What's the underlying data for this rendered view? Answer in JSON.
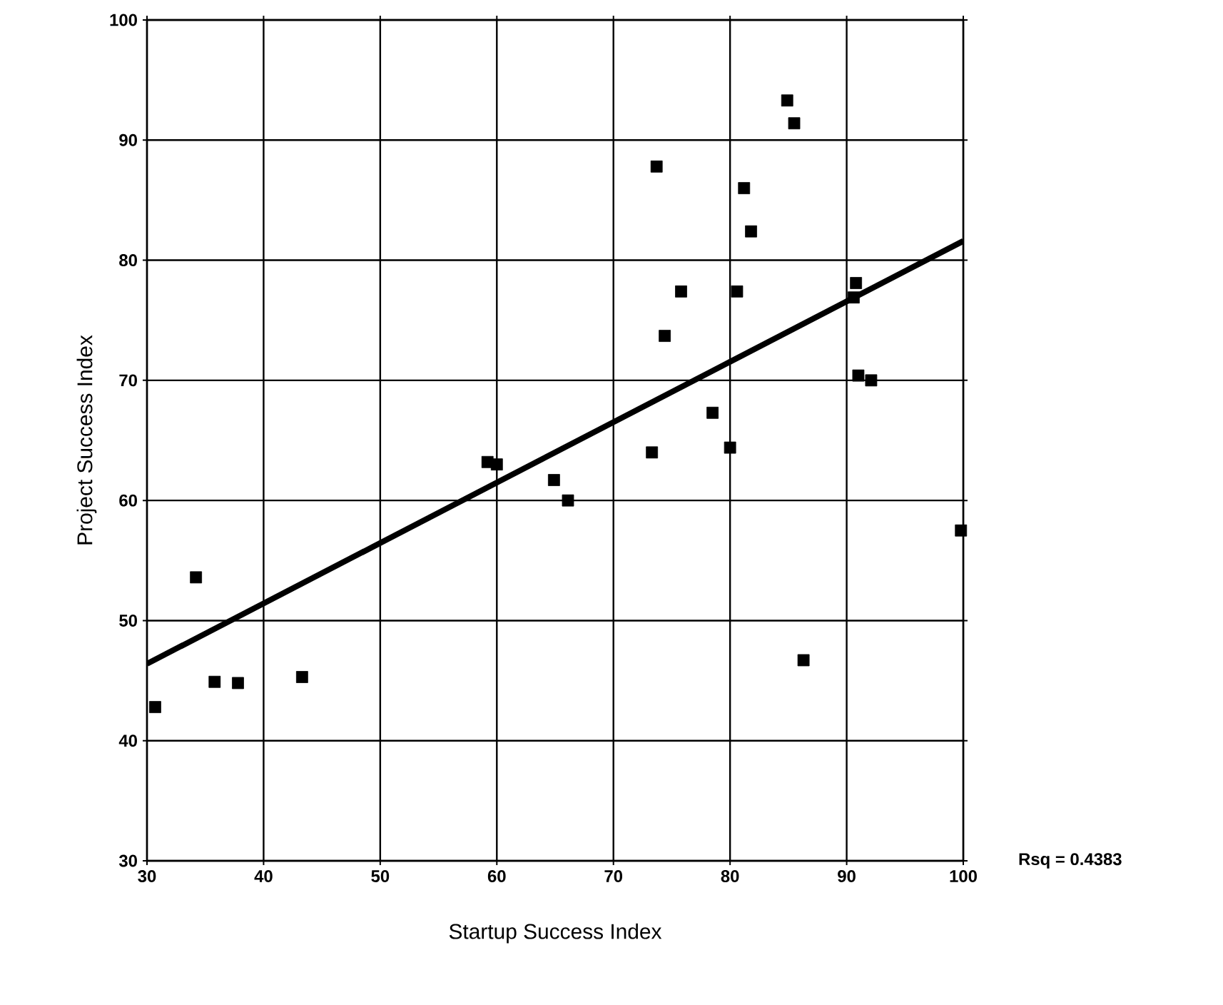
{
  "chart_data": {
    "type": "scatter",
    "xlabel": "Startup Success Index",
    "ylabel": "Project Success Index",
    "xlim": [
      30,
      100
    ],
    "ylim": [
      30,
      100
    ],
    "xticks": [
      30,
      40,
      50,
      60,
      70,
      80,
      90,
      100
    ],
    "yticks": [
      30,
      40,
      50,
      60,
      70,
      80,
      90,
      100
    ],
    "grid": true,
    "series": [
      {
        "marker": "square",
        "color": "#000000",
        "x": [
          30.7,
          34.2,
          35.8,
          37.8,
          43.3,
          59.2,
          60.0,
          64.9,
          66.1,
          73.3,
          73.7,
          74.4,
          75.8,
          78.5,
          80.0,
          80.6,
          81.2,
          81.8,
          84.9,
          85.5,
          86.3,
          90.6,
          90.8,
          91.0,
          92.1,
          99.8
        ],
        "values": [
          42.8,
          53.6,
          44.9,
          44.8,
          45.3,
          63.2,
          63.0,
          61.7,
          60.0,
          64.0,
          87.8,
          73.7,
          77.4,
          67.3,
          64.4,
          77.4,
          86.0,
          82.4,
          93.3,
          91.4,
          46.7,
          76.9,
          78.1,
          70.4,
          70.0,
          57.5
        ]
      },
      {
        "type": "line",
        "marker": "none",
        "color": "#000000",
        "x": [
          30,
          100
        ],
        "values": [
          46.4,
          81.6
        ]
      }
    ],
    "annotations": [
      "Rsq = 0.4383"
    ]
  }
}
